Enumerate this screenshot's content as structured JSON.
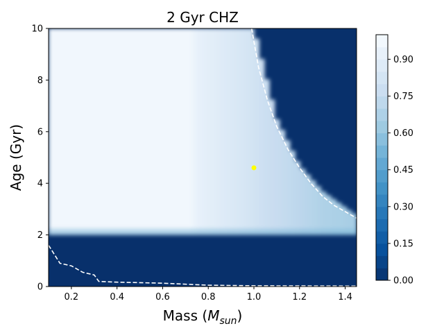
{
  "chart_data": {
    "type": "heatmap",
    "title": "2 Gyr CHZ",
    "xlabel": "Mass (M_sun)",
    "xlabel_parts": {
      "base": "Mass (",
      "var": "M",
      "sub": "sun",
      "close": ")"
    },
    "ylabel": "Age (Gyr)",
    "xlim": [
      0.1,
      1.45
    ],
    "ylim": [
      0,
      10
    ],
    "x_ticks": [
      0.2,
      0.4,
      0.6,
      0.8,
      1.0,
      1.2,
      1.4
    ],
    "x_tick_labels": [
      "0.2",
      "0.4",
      "0.6",
      "0.8",
      "1.0",
      "1.2",
      "1.4"
    ],
    "y_ticks": [
      0,
      2,
      4,
      6,
      8,
      10
    ],
    "y_tick_labels": [
      "0",
      "2",
      "4",
      "6",
      "8",
      "10"
    ],
    "colorbar": {
      "range": [
        0,
        1.0
      ],
      "ticks": [
        0.0,
        0.15,
        0.3,
        0.45,
        0.6,
        0.75,
        0.9
      ],
      "tick_labels": [
        "0.00",
        "0.15",
        "0.30",
        "0.45",
        "0.60",
        "0.75",
        "0.90"
      ],
      "levels": 20,
      "colormap": "Blues_r"
    },
    "regions": {
      "min_habitable_age_gyr": 2.0,
      "upper_dead_boundary": [
        [
          1.0,
          10.0
        ],
        [
          1.1,
          6.5
        ],
        [
          1.2,
          4.7
        ],
        [
          1.3,
          3.7
        ],
        [
          1.45,
          2.75
        ]
      ],
      "lower_dashed_curve": [
        [
          0.1,
          1.6
        ],
        [
          0.15,
          0.9
        ],
        [
          0.2,
          0.8
        ],
        [
          0.25,
          0.55
        ],
        [
          0.3,
          0.45
        ],
        [
          0.32,
          0.2
        ],
        [
          0.4,
          0.17
        ],
        [
          0.6,
          0.13
        ],
        [
          0.8,
          0.05
        ],
        [
          1.0,
          0.03
        ],
        [
          1.45,
          0.02
        ]
      ],
      "upper_dashed_curve": [
        [
          0.99,
          10.0
        ],
        [
          1.02,
          8.5
        ],
        [
          1.06,
          7.2
        ],
        [
          1.1,
          6.2
        ],
        [
          1.15,
          5.3
        ],
        [
          1.2,
          4.6
        ],
        [
          1.25,
          4.0
        ],
        [
          1.3,
          3.5
        ],
        [
          1.35,
          3.15
        ],
        [
          1.4,
          2.9
        ],
        [
          1.45,
          2.65
        ]
      ],
      "interior_values_by_mass": [
        [
          0.1,
          0.97
        ],
        [
          0.72,
          0.97
        ],
        [
          0.75,
          0.92
        ],
        [
          0.85,
          0.88
        ],
        [
          0.95,
          0.84
        ],
        [
          1.05,
          0.78
        ],
        [
          1.15,
          0.74
        ],
        [
          1.3,
          0.68
        ],
        [
          1.45,
          0.65
        ]
      ]
    },
    "markers": [
      {
        "label": "Sun",
        "x": 1.0,
        "y": 4.6,
        "color": "#ffff00"
      }
    ],
    "colors": {
      "dead": "#08306b",
      "background": "#ffffff"
    }
  }
}
